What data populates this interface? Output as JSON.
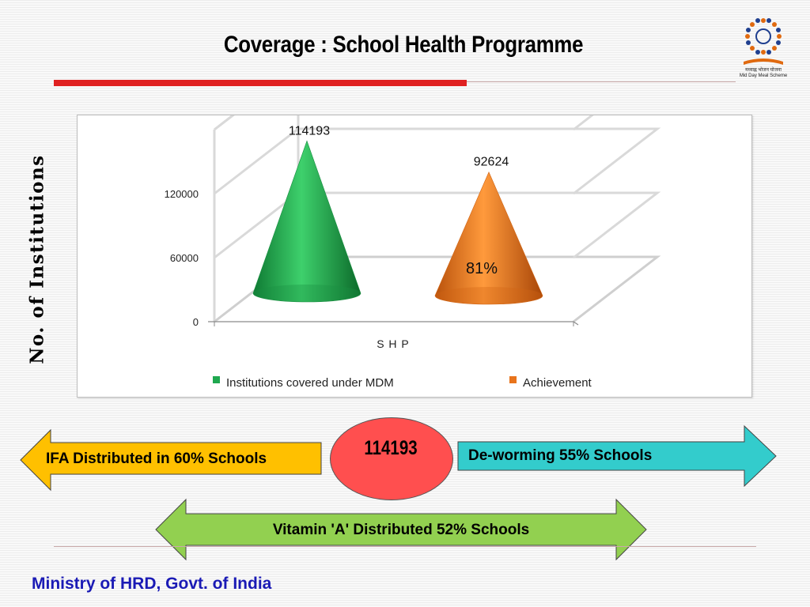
{
  "title": "Coverage : School Health Programme",
  "logo": {
    "caption_line1": "मध्याह्न भोजन योजना",
    "caption_line2": "Mid Day Meal Scheme"
  },
  "y_axis_title": "No. of Institutions",
  "chart_data": {
    "type": "bar",
    "style": "3d-cone",
    "categories": [
      "S H P"
    ],
    "series": [
      {
        "name": "Institutions covered under MDM",
        "values": [
          114193
        ],
        "color": "#1fa84f"
      },
      {
        "name": "Achievement",
        "values": [
          92624
        ],
        "color": "#e8741c"
      }
    ],
    "data_labels": [
      "114193",
      "92624"
    ],
    "annotation": "81%",
    "yticks": [
      0,
      60000,
      120000
    ],
    "ytick_labels": [
      "0",
      "60000",
      "120000"
    ],
    "ylim": [
      0,
      180000
    ],
    "xlabel": "S H P",
    "ylabel": "No. of Institutions",
    "grid": true,
    "legend_position": "bottom"
  },
  "arrows": {
    "ifa": {
      "text": "IFA Distributed in 60% Schools",
      "color": "#ffc000"
    },
    "deworming": {
      "text": "De-worming 55% Schools",
      "color": "#33cccc"
    },
    "vitamin": {
      "text": "Vitamin 'A' Distributed 52% Schools",
      "color": "#92d050"
    }
  },
  "center_value": {
    "text": "114193",
    "color": "#ff4f4f"
  },
  "footer": "Ministry of HRD, Govt. of India"
}
